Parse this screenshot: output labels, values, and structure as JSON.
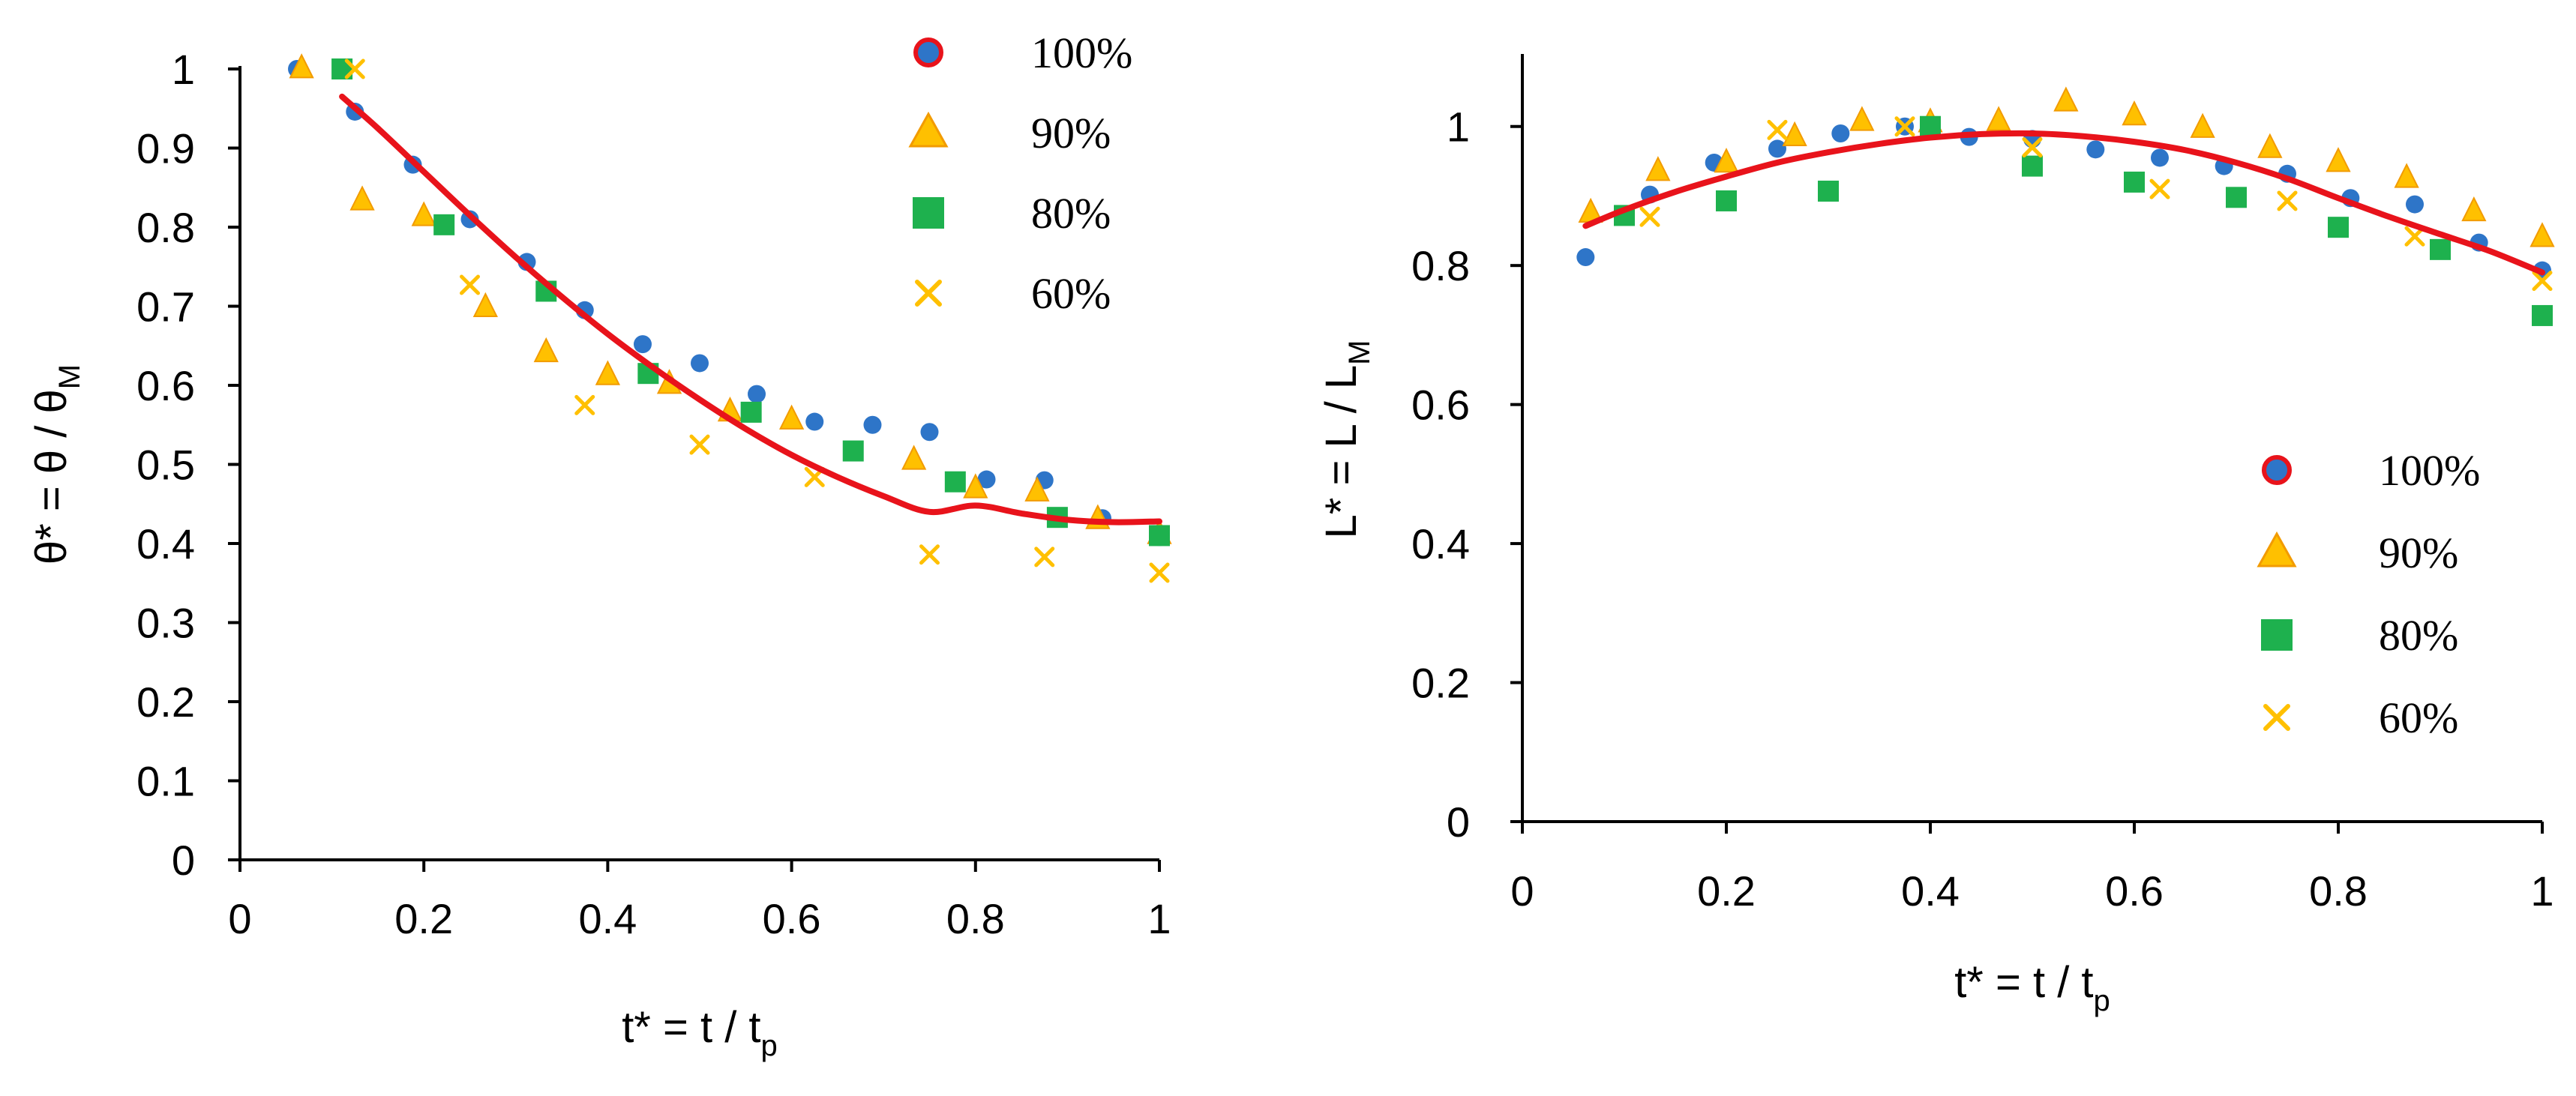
{
  "chart_data": [
    {
      "type": "scatter",
      "panel": "left",
      "xlabel": {
        "main": "t* = t / t",
        "sub": "p"
      },
      "ylabel": {
        "main": "θ* = θ / θ",
        "sub": "M"
      },
      "xlim": [
        0,
        1
      ],
      "ylim": [
        0,
        1
      ],
      "xticks": [
        0,
        0.2,
        0.4,
        0.6,
        0.8,
        1
      ],
      "yticks": [
        0,
        0.1,
        0.2,
        0.3,
        0.4,
        0.5,
        0.6,
        0.7,
        0.8,
        0.9,
        1
      ],
      "tick_labels_x": [
        "0",
        "0.2",
        "0.4",
        "0.6",
        "0.8",
        "1"
      ],
      "tick_labels_y": [
        "0",
        "0.1",
        "0.2",
        "0.3",
        "0.4",
        "0.5",
        "0.6",
        "0.7",
        "0.8",
        "0.9",
        "1"
      ],
      "legend_position": "top-right",
      "series": [
        {
          "name": "100%",
          "marker": "circle",
          "color": "#2E75C8",
          "x": [
            0.062,
            0.125,
            0.188,
            0.25,
            0.312,
            0.375,
            0.438,
            0.5,
            0.562,
            0.625,
            0.688,
            0.75,
            0.812,
            0.875,
            0.938,
            1.0
          ],
          "y": [
            1.0,
            0.946,
            0.879,
            0.81,
            0.756,
            0.695,
            0.652,
            0.628,
            0.589,
            0.554,
            0.55,
            0.541,
            0.481,
            0.48,
            0.432,
            0.408
          ]
        },
        {
          "name": "90%",
          "marker": "triangle",
          "color": "#FFC000",
          "x": [
            0.067,
            0.133,
            0.2,
            0.267,
            0.333,
            0.4,
            0.467,
            0.533,
            0.6,
            0.733,
            0.8,
            0.867,
            0.933,
            1.0
          ],
          "y": [
            1.0,
            0.833,
            0.813,
            0.698,
            0.641,
            0.612,
            0.601,
            0.566,
            0.556,
            0.505,
            0.469,
            0.465,
            0.43,
            0.411
          ]
        },
        {
          "name": "80%",
          "marker": "square",
          "color": "#1EB14E",
          "x": [
            0.111,
            0.222,
            0.333,
            0.444,
            0.556,
            0.667,
            0.778,
            0.889,
            1.0
          ],
          "y": [
            1.0,
            0.803,
            0.719,
            0.615,
            0.566,
            0.517,
            0.478,
            0.433,
            0.41
          ]
        },
        {
          "name": "60%",
          "marker": "x",
          "color": "#FFC000",
          "x": [
            0.125,
            0.25,
            0.375,
            0.5,
            0.625,
            0.75,
            0.875,
            1.0
          ],
          "y": [
            1.0,
            0.727,
            0.575,
            0.525,
            0.484,
            0.386,
            0.383,
            0.363
          ]
        }
      ],
      "fit_curve": {
        "color": "#E8131B",
        "x": [
          0.111,
          0.15,
          0.2,
          0.25,
          0.3,
          0.35,
          0.4,
          0.45,
          0.5,
          0.55,
          0.6,
          0.65,
          0.7,
          0.75,
          0.8,
          0.85,
          0.9,
          0.95,
          1.0
        ],
        "y": [
          0.965,
          0.925,
          0.87,
          0.815,
          0.762,
          0.712,
          0.665,
          0.622,
          0.582,
          0.545,
          0.512,
          0.484,
          0.46,
          0.44,
          0.448,
          0.438,
          0.43,
          0.427,
          0.428
        ]
      }
    },
    {
      "type": "scatter",
      "panel": "right",
      "xlabel": {
        "main": "t* = t / t",
        "sub": "p"
      },
      "ylabel": {
        "main": "L* = L / L",
        "sub": "M"
      },
      "xlim": [
        0,
        1
      ],
      "ylim": [
        0,
        1.1
      ],
      "xticks": [
        0,
        0.2,
        0.4,
        0.6,
        0.8,
        1
      ],
      "yticks": [
        0,
        0.2,
        0.4,
        0.6,
        0.8,
        1
      ],
      "tick_labels_x": [
        "0",
        "0.2",
        "0.4",
        "0.6",
        "0.8",
        "1"
      ],
      "tick_labels_y": [
        "0",
        "0.2",
        "0.4",
        "0.6",
        "0.8",
        "1"
      ],
      "legend_position": "bottom-right",
      "series": [
        {
          "name": "100%",
          "marker": "circle",
          "color": "#2E75C8",
          "x": [
            0.062,
            0.125,
            0.188,
            0.25,
            0.312,
            0.375,
            0.438,
            0.5,
            0.562,
            0.625,
            0.688,
            0.75,
            0.812,
            0.875,
            0.938,
            1.0
          ],
          "y": [
            0.812,
            0.902,
            0.948,
            0.968,
            0.99,
            1.0,
            0.985,
            0.982,
            0.967,
            0.955,
            0.943,
            0.932,
            0.897,
            0.888,
            0.833,
            0.793
          ]
        },
        {
          "name": "90%",
          "marker": "triangle",
          "color": "#FFC000",
          "x": [
            0.067,
            0.133,
            0.2,
            0.267,
            0.333,
            0.4,
            0.467,
            0.533,
            0.6,
            0.667,
            0.733,
            0.8,
            0.867,
            0.933,
            1.0
          ],
          "y": [
            0.875,
            0.935,
            0.947,
            0.985,
            1.007,
            1.005,
            1.007,
            1.035,
            1.015,
            0.997,
            0.968,
            0.948,
            0.925,
            0.877,
            0.84
          ]
        },
        {
          "name": "80%",
          "marker": "square",
          "color": "#1EB14E",
          "x": [
            0.1,
            0.2,
            0.3,
            0.4,
            0.5,
            0.6,
            0.7,
            0.8,
            0.9,
            1.0
          ],
          "y": [
            0.872,
            0.893,
            0.907,
            1.0,
            0.943,
            0.92,
            0.898,
            0.855,
            0.823,
            0.728
          ]
        },
        {
          "name": "60%",
          "marker": "x",
          "color": "#FFC000",
          "x": [
            0.125,
            0.25,
            0.375,
            0.5,
            0.625,
            0.75,
            0.875,
            1.0
          ],
          "y": [
            0.87,
            0.995,
            1.0,
            0.97,
            0.91,
            0.893,
            0.842,
            0.778
          ]
        }
      ],
      "fit_curve": {
        "color": "#E8131B",
        "x": [
          0.062,
          0.1,
          0.15,
          0.2,
          0.25,
          0.3,
          0.35,
          0.4,
          0.45,
          0.5,
          0.55,
          0.6,
          0.65,
          0.7,
          0.75,
          0.8,
          0.85,
          0.9,
          0.95,
          1.0
        ],
        "y": [
          0.857,
          0.88,
          0.906,
          0.928,
          0.948,
          0.963,
          0.975,
          0.984,
          0.989,
          0.99,
          0.986,
          0.978,
          0.966,
          0.948,
          0.925,
          0.897,
          0.87,
          0.845,
          0.82,
          0.79
        ]
      }
    }
  ]
}
